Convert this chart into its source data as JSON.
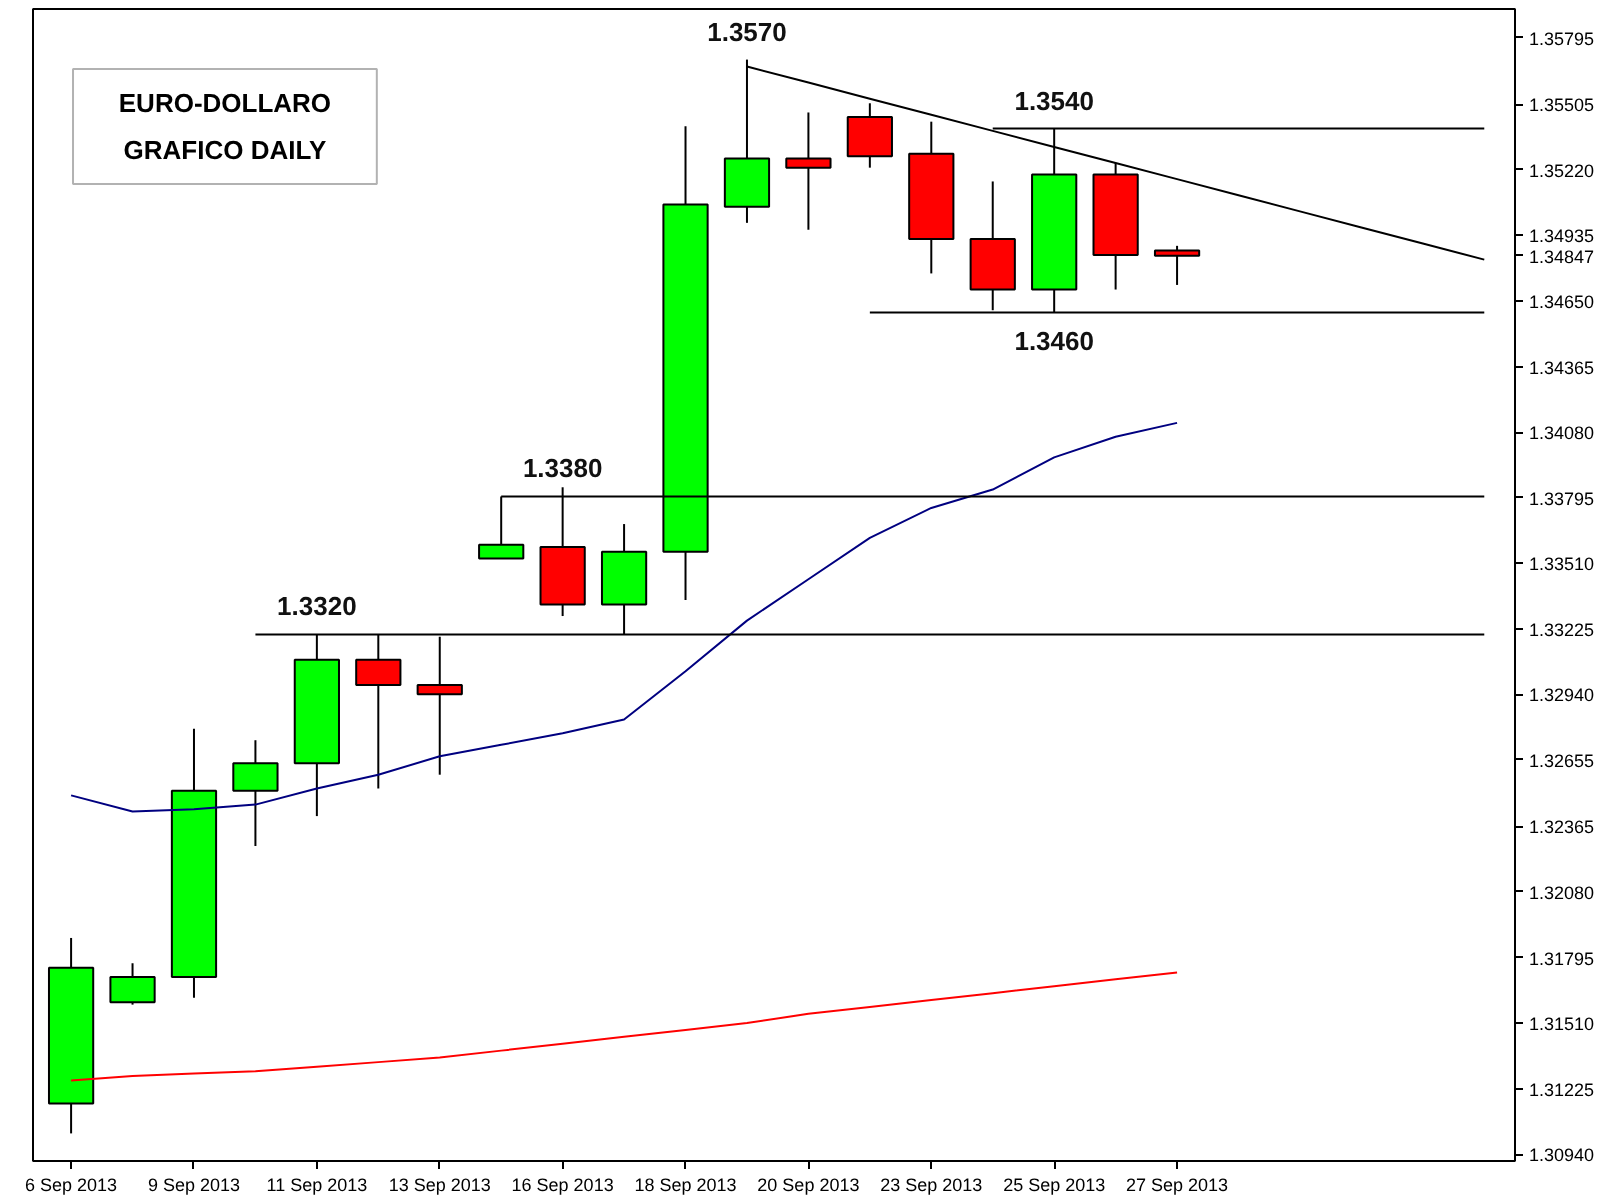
{
  "chart_data": {
    "type": "candlestick",
    "title": "EURO-DOLLARO",
    "subtitle": "GRAFICO DAILY",
    "categories": [
      "6 Sep 2013",
      null,
      "9 Sep 2013",
      null,
      "11 Sep 2013",
      null,
      "13 Sep 2013",
      null,
      "16 Sep 2013",
      null,
      "18 Sep 2013",
      null,
      "20 Sep 2013",
      null,
      "23 Sep 2013",
      null,
      "25 Sep 2013",
      null,
      "27 Sep 2013",
      null,
      null,
      null,
      null,
      null
    ],
    "ohlc": [
      [
        1.3116,
        1.3188,
        1.3103,
        1.3175
      ],
      [
        1.316,
        1.3177,
        1.3159,
        1.3171
      ],
      [
        1.3171,
        1.3279,
        1.3162,
        1.3252
      ],
      [
        1.3252,
        1.3274,
        1.3228,
        1.3264
      ],
      [
        1.3264,
        1.332,
        1.3241,
        1.3309
      ],
      [
        1.3309,
        1.332,
        1.3253,
        1.3298
      ],
      [
        1.3298,
        1.3319,
        1.3259,
        1.3294
      ],
      [
        1.3353,
        1.338,
        1.3353,
        1.3359
      ],
      [
        1.3358,
        1.3384,
        1.3328,
        1.3333
      ],
      [
        1.3333,
        1.3368,
        1.332,
        1.3356
      ],
      [
        1.3356,
        1.3541,
        1.3335,
        1.3507
      ],
      [
        1.3506,
        1.357,
        1.3499,
        1.3527
      ],
      [
        1.3527,
        1.3547,
        1.3496,
        1.3523
      ],
      [
        1.3545,
        1.3551,
        1.3523,
        1.3528
      ],
      [
        1.3529,
        1.3543,
        1.3477,
        1.3492
      ],
      [
        1.3492,
        1.3517,
        1.3461,
        1.347
      ],
      [
        1.347,
        1.354,
        1.346,
        1.352
      ],
      [
        1.352,
        1.3525,
        1.347,
        1.3485
      ],
      [
        1.3487,
        1.3489,
        1.3472,
        1.34847
      ],
      null,
      null,
      null,
      null,
      null
    ],
    "colors": [
      "#00ff00",
      "#00ff00",
      "#00ff00",
      "#00ff00",
      "#00ff00",
      "#ff0000",
      "#ff0000",
      "#00ff00",
      "#ff0000",
      "#00ff00",
      "#00ff00",
      "#00ff00",
      "#ff0000",
      "#ff0000",
      "#ff0000",
      "#ff0000",
      "#00ff00",
      "#ff0000",
      "#ff0000",
      null,
      null,
      null,
      null,
      null
    ],
    "series": [
      {
        "type": "line",
        "color": "#000080",
        "values": [
          1.325,
          1.3243,
          1.3244,
          1.3246,
          1.3253,
          1.3259,
          1.3267,
          1.3272,
          1.3277,
          1.3283,
          1.3304,
          1.3326,
          1.3344,
          1.3362,
          1.3375,
          1.3383,
          1.3397,
          1.3406,
          1.3412,
          null,
          null,
          null,
          null,
          null
        ]
      },
      {
        "type": "line",
        "color": "#ff0000",
        "values": [
          1.3126,
          1.3128,
          1.3129,
          1.313,
          1.3132,
          1.3134,
          1.3136,
          1.3139,
          1.3142,
          1.3145,
          1.3148,
          1.3151,
          1.3155,
          1.3158,
          1.3161,
          1.3164,
          1.3167,
          1.317,
          1.3173,
          null,
          null,
          null,
          null,
          null
        ]
      },
      {
        "type": "line",
        "color": "#000000",
        "values": [
          null,
          null,
          null,
          1.332,
          1.332,
          1.332,
          1.332,
          1.332,
          1.332,
          1.332,
          1.332,
          1.332,
          1.332,
          1.332,
          1.332,
          1.332,
          1.332,
          1.332,
          1.332,
          1.332,
          1.332,
          1.332,
          1.332,
          1.332
        ]
      },
      {
        "type": "line",
        "color": "#000000",
        "values": [
          null,
          null,
          null,
          null,
          null,
          null,
          null,
          1.338,
          1.338,
          1.338,
          1.338,
          1.338,
          1.338,
          1.338,
          1.338,
          1.338,
          1.338,
          1.338,
          1.338,
          1.338,
          1.338,
          1.338,
          1.338,
          1.338
        ]
      },
      {
        "type": "line",
        "color": "#000000",
        "values": [
          null,
          null,
          null,
          null,
          null,
          null,
          null,
          null,
          null,
          null,
          null,
          null,
          null,
          1.346,
          1.346,
          1.346,
          1.346,
          1.346,
          1.346,
          1.346,
          1.346,
          1.346,
          1.346,
          1.346
        ]
      },
      {
        "type": "line",
        "color": "#000000",
        "values": [
          null,
          null,
          null,
          null,
          null,
          null,
          null,
          null,
          null,
          null,
          null,
          null,
          null,
          null,
          null,
          1.354,
          1.354,
          1.354,
          1.354,
          1.354,
          1.354,
          1.354,
          1.354,
          1.354
        ]
      },
      {
        "type": "line",
        "color": "#000000",
        "values": [
          null,
          null,
          null,
          null,
          null,
          null,
          null,
          null,
          null,
          null,
          null,
          1.3567,
          1.356,
          1.3553,
          1.3546,
          1.3539,
          1.3532,
          1.3525,
          1.3518,
          1.3511,
          1.3504,
          1.3497,
          1.349,
          1.3483
        ]
      }
    ],
    "ylim": [
      1.3091,
      1.3592
    ],
    "yticks": [
      {
        "value": 1.3094,
        "label": "1.30940"
      },
      1.31225,
      {
        "value": 1.3151,
        "label": "1.31510"
      },
      1.31795,
      {
        "value": 1.3208,
        "label": "1.32080"
      },
      1.32365,
      1.32655,
      {
        "value": 1.3294,
        "label": "1.32940"
      },
      1.33225,
      {
        "value": 1.3351,
        "label": "1.33510"
      },
      1.33795,
      {
        "value": 1.3408,
        "label": "1.34080"
      },
      1.34365,
      {
        "value": 1.3465,
        "label": "1.34650"
      },
      1.34847,
      1.34935,
      {
        "value": 1.3522,
        "label": "1.35220"
      },
      1.35505,
      1.35795
    ],
    "annotations": [
      {
        "text": "1.3320",
        "x": "11 Sep 2013",
        "y": 1.332
      },
      {
        "text": "1.3380",
        "x": "16 Sep 2013",
        "y": 1.338
      },
      {
        "text": "1.3570",
        "y": 1.357
      },
      {
        "text": "1.3540",
        "x": "25 Sep 2013",
        "y": 1.354
      },
      {
        "text": "1.3460",
        "x": "25 Sep 2013",
        "y": 1.346
      }
    ],
    "grid": false
  }
}
